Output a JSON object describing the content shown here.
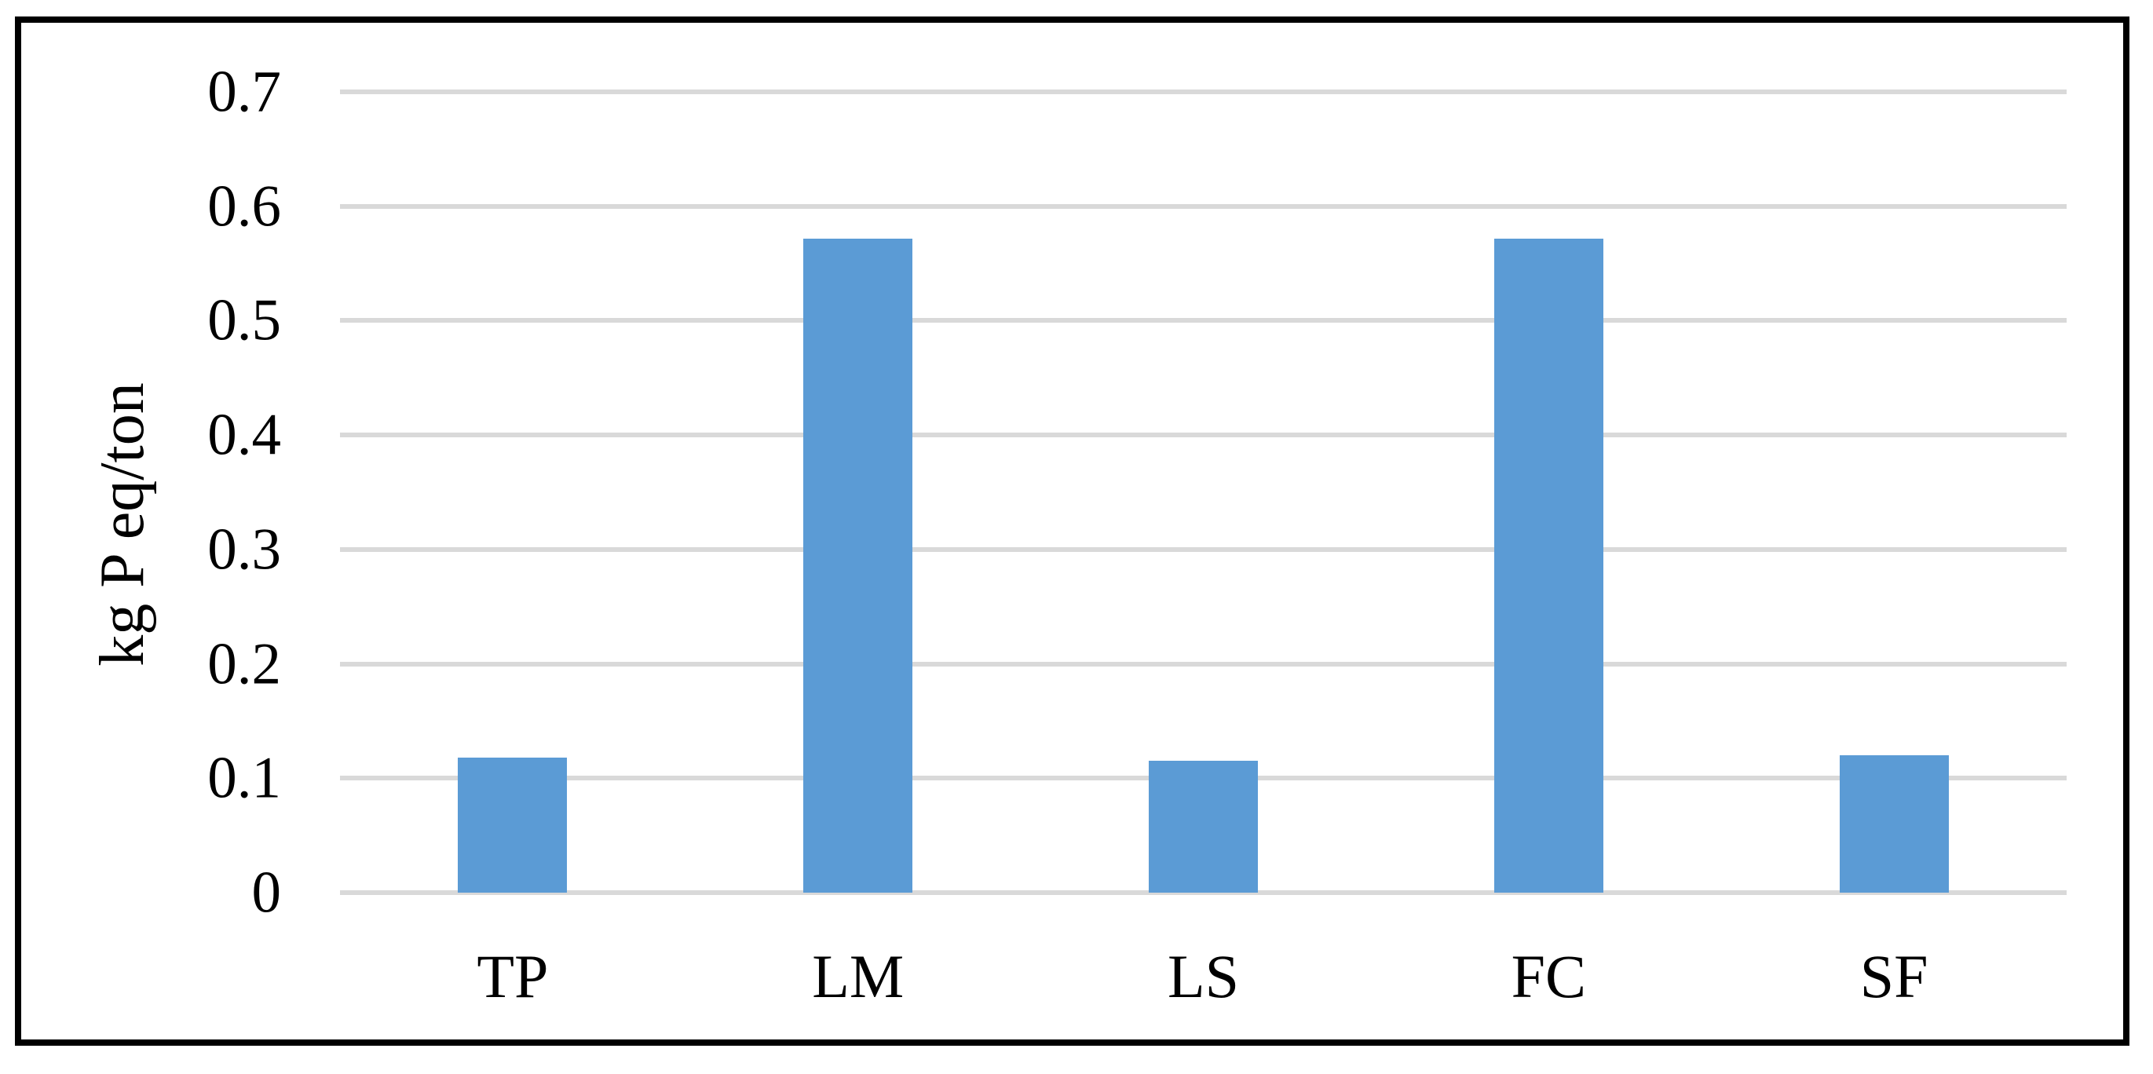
{
  "chart_data": {
    "type": "bar",
    "categories": [
      "TP",
      "LM",
      "LS",
      "FC",
      "SF"
    ],
    "values": [
      0.118,
      0.572,
      0.115,
      0.572,
      0.12
    ],
    "title": "",
    "xlabel": "",
    "ylabel": "kg P eq/ton",
    "ylim": [
      0,
      0.7
    ],
    "yticks": [
      0,
      0.1,
      0.2,
      0.3,
      0.4,
      0.5,
      0.6,
      0.7
    ],
    "ytick_labels": [
      "0",
      "0.1",
      "0.2",
      "0.3",
      "0.4",
      "0.5",
      "0.6",
      "0.7"
    ],
    "grid": true,
    "legend": false,
    "bar_color": "#5B9BD5",
    "gridline_color": "#D9D9D9",
    "border_color": "#000000",
    "text_color": "#000000",
    "background": "#FFFFFF"
  }
}
